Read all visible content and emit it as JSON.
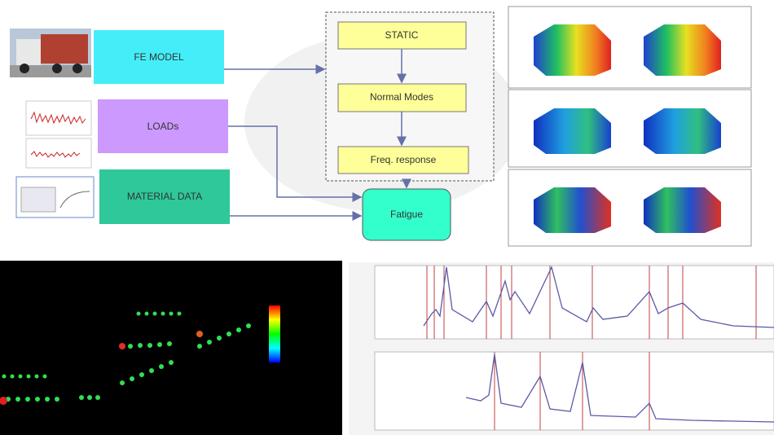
{
  "flow": {
    "inputs": [
      "FE MODEL",
      "LOADs",
      "MATERIAL DATA"
    ],
    "analyses": [
      "STATIC",
      "Normal Modes",
      "Freq. response"
    ],
    "output": "Fatigue"
  }
}
